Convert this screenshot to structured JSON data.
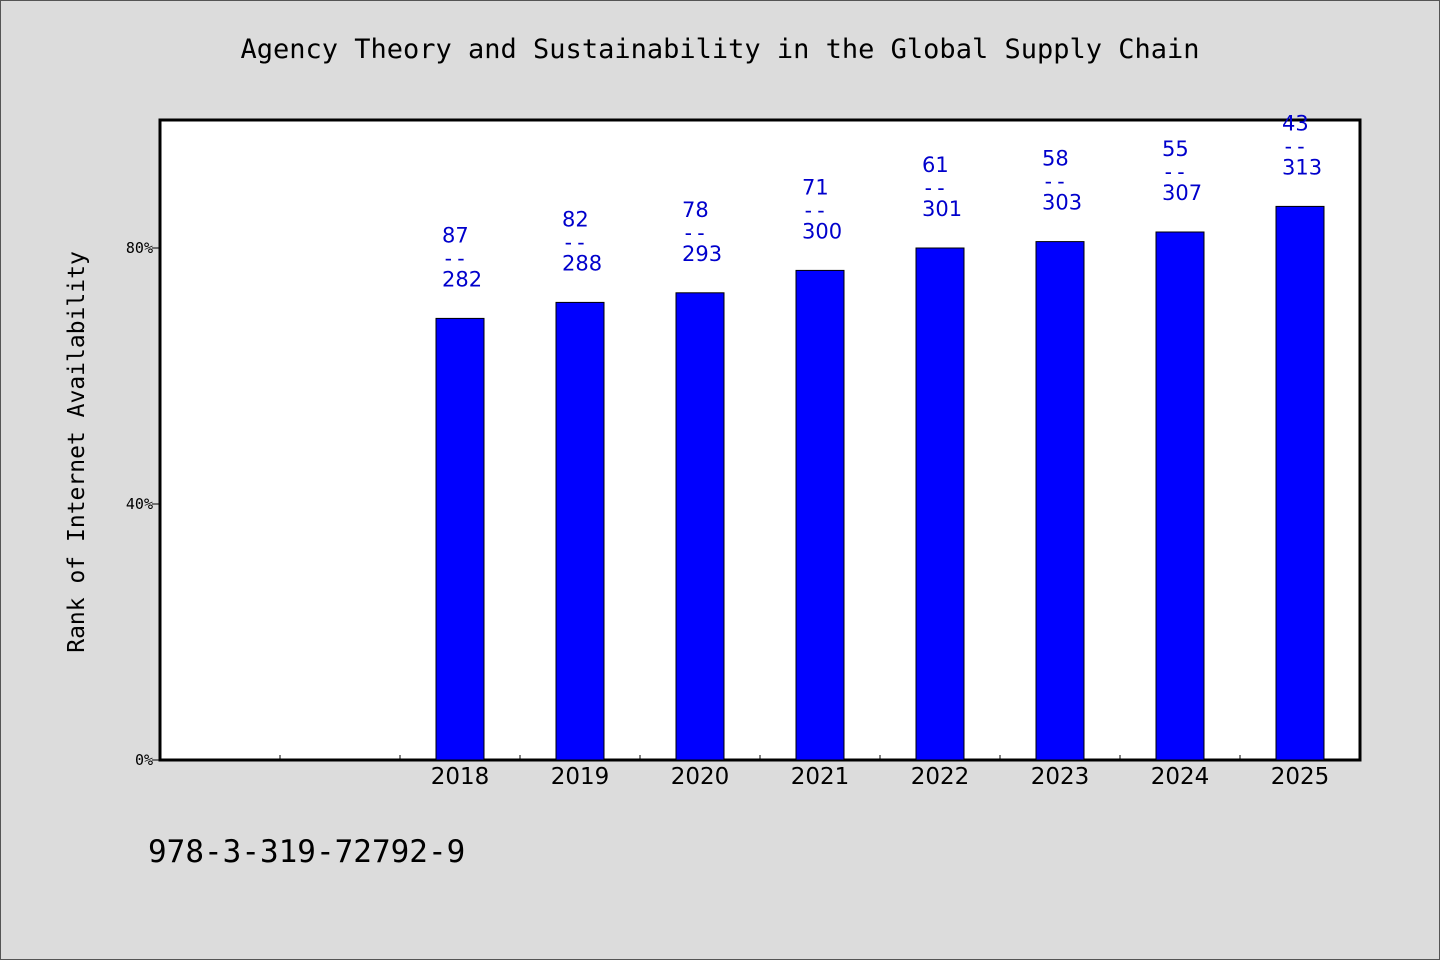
{
  "chart_data": {
    "type": "bar",
    "title": "Agency Theory and Sustainability in the Global Supply Chain",
    "xlabel": "",
    "ylabel": "Rank of Internet Availability",
    "ylim": [
      0,
      100
    ],
    "yticks": [
      {
        "value": 0,
        "label": "0%"
      },
      {
        "value": 40,
        "label": "40%"
      },
      {
        "value": 80,
        "label": "80%"
      }
    ],
    "categories": [
      "",
      "",
      "2018",
      "2019",
      "2020",
      "2021",
      "2022",
      "2023",
      "2024",
      "2025"
    ],
    "values": [
      null,
      null,
      69,
      71.5,
      73,
      76.5,
      80,
      81,
      82.5,
      86.5
    ],
    "bar_labels": [
      null,
      null,
      {
        "rank": "87",
        "sep": "--",
        "count": "282"
      },
      {
        "rank": "82",
        "sep": "--",
        "count": "288"
      },
      {
        "rank": "78",
        "sep": "--",
        "count": "293"
      },
      {
        "rank": "71",
        "sep": "--",
        "count": "300"
      },
      {
        "rank": "61",
        "sep": "--",
        "count": "301"
      },
      {
        "rank": "58",
        "sep": "--",
        "count": "303"
      },
      {
        "rank": "55",
        "sep": "--",
        "count": "307"
      },
      {
        "rank": "43",
        "sep": "--",
        "count": "313"
      }
    ],
    "grid": false,
    "colors": {
      "bar": "#0000ff",
      "label": "#0000cc",
      "plot_bg": "#ffffff",
      "page_bg": "#dcdcdc"
    }
  },
  "footer": {
    "isbn": "978-3-319-72792-9"
  }
}
